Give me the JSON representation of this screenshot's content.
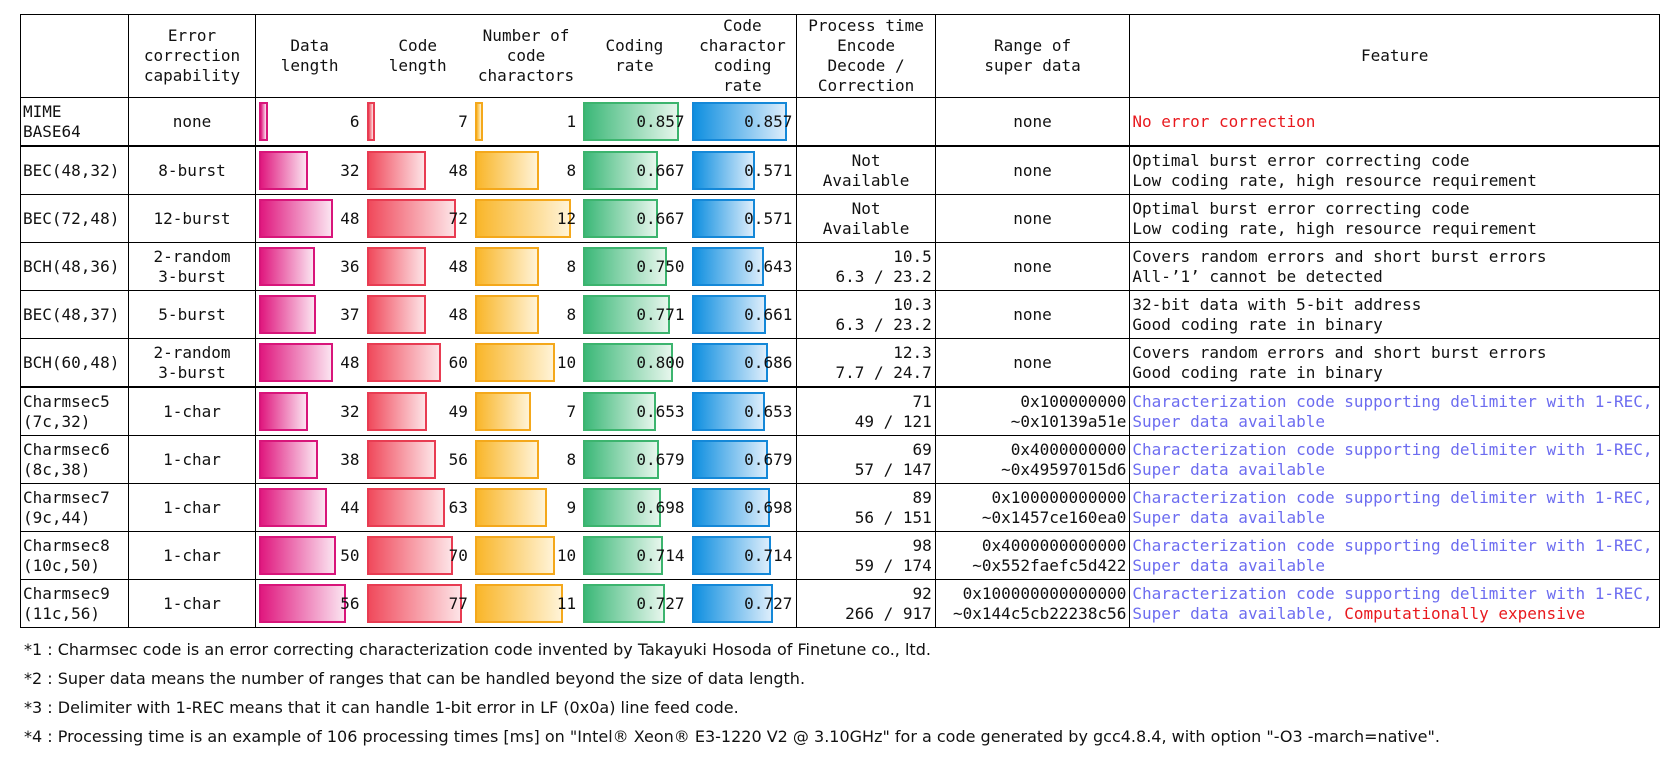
{
  "headers": {
    "blank": "",
    "ecc": "Error\ncorrection\ncapability",
    "data_length": "Data length",
    "code_length": "Code length",
    "num_chars": "Number of\ncode\ncharactors",
    "coding_rate": "Coding rate",
    "char_rate": "Code\ncharactor\ncoding rate",
    "process_time": "Process time\nEncode\nDecode /\nCorrection",
    "range": "Range of\nsuper data",
    "feature": "Feature"
  },
  "rows": [
    {
      "name": "MIME BASE64",
      "ecc": "none",
      "data_length": 6,
      "code_length": 7,
      "num_chars": 1,
      "coding_rate": 0.857,
      "char_rate": 0.857,
      "coding_rate_text": "0.857",
      "char_rate_text": "0.857",
      "process": "",
      "range": "none",
      "feature": [
        {
          "text": "No error correction",
          "color": "red"
        }
      ]
    },
    {
      "name": "BEC(48,32)",
      "ecc": "8-burst",
      "data_length": 32,
      "code_length": 48,
      "num_chars": 8,
      "coding_rate": 0.667,
      "char_rate": 0.571,
      "coding_rate_text": "0.667",
      "char_rate_text": "0.571",
      "process": "Not\nAvailable",
      "process_align": "center",
      "range": "none",
      "feature": [
        {
          "text": "Optimal burst error correcting code\nLow coding rate, high resource requirement",
          "color": "black"
        }
      ]
    },
    {
      "name": "BEC(72,48)",
      "ecc": "12-burst",
      "data_length": 48,
      "code_length": 72,
      "num_chars": 12,
      "coding_rate": 0.667,
      "char_rate": 0.571,
      "coding_rate_text": "0.667",
      "char_rate_text": "0.571",
      "process": "Not\nAvailable",
      "process_align": "center",
      "range": "none",
      "feature": [
        {
          "text": "Optimal burst error correcting code\nLow coding rate, high resource requirement",
          "color": "black"
        }
      ]
    },
    {
      "name": "BCH(48,36)",
      "ecc": "2-random\n3-burst",
      "data_length": 36,
      "code_length": 48,
      "num_chars": 8,
      "coding_rate": 0.75,
      "char_rate": 0.643,
      "coding_rate_text": "0.750",
      "char_rate_text": "0.643",
      "process": "10.5\n6.3 / 23.2",
      "range": "none",
      "feature": [
        {
          "text": "Covers random errors and short burst errors\nAll-’1’ cannot be detected",
          "color": "black"
        }
      ]
    },
    {
      "name": "BEC(48,37)",
      "ecc": "5-burst",
      "data_length": 37,
      "code_length": 48,
      "num_chars": 8,
      "coding_rate": 0.771,
      "char_rate": 0.661,
      "coding_rate_text": "0.771",
      "char_rate_text": "0.661",
      "process": "10.3\n6.3 / 23.2",
      "range": "none",
      "feature": [
        {
          "text": "32-bit data with 5-bit address\nGood coding rate in binary",
          "color": "black"
        }
      ]
    },
    {
      "name": "BCH(60,48)",
      "ecc": "2-random\n3-burst",
      "data_length": 48,
      "code_length": 60,
      "num_chars": 10,
      "coding_rate": 0.8,
      "char_rate": 0.686,
      "coding_rate_text": "0.800",
      "char_rate_text": "0.686",
      "process": "12.3\n7.7 / 24.7",
      "range": "none",
      "feature": [
        {
          "text": "Covers random errors and short burst errors\nGood coding rate in binary",
          "color": "black"
        }
      ]
    },
    {
      "name": "Charmsec5\n (7c,32)",
      "ecc": "1-char",
      "data_length": 32,
      "code_length": 49,
      "num_chars": 7,
      "coding_rate": 0.653,
      "char_rate": 0.653,
      "coding_rate_text": "0.653",
      "char_rate_text": "0.653",
      "process": "71\n49 / 121",
      "range": "0x100000000\n~0x10139a51e",
      "range_align": "right",
      "feature": [
        {
          "text": "Characterization code supporting delimiter with 1-REC,\nSuper data available",
          "color": "blue"
        }
      ]
    },
    {
      "name": "Charmsec6\n (8c,38)",
      "ecc": "1-char",
      "data_length": 38,
      "code_length": 56,
      "num_chars": 8,
      "coding_rate": 0.679,
      "char_rate": 0.679,
      "coding_rate_text": "0.679",
      "char_rate_text": "0.679",
      "process": "69\n57 / 147",
      "range": "0x4000000000\n~0x49597015d6",
      "range_align": "right",
      "feature": [
        {
          "text": "Characterization code supporting delimiter with 1-REC,\nSuper data available",
          "color": "blue"
        }
      ]
    },
    {
      "name": "Charmsec7\n (9c,44)",
      "ecc": "1-char",
      "data_length": 44,
      "code_length": 63,
      "num_chars": 9,
      "coding_rate": 0.698,
      "char_rate": 0.698,
      "coding_rate_text": "0.698",
      "char_rate_text": "0.698",
      "process": "89\n56 / 151",
      "range": "0x100000000000\n~0x1457ce160ea0",
      "range_align": "right",
      "feature": [
        {
          "text": "Characterization code supporting delimiter with 1-REC,\nSuper data available",
          "color": "blue"
        }
      ]
    },
    {
      "name": "Charmsec8\n (10c,50)",
      "ecc": "1-char",
      "data_length": 50,
      "code_length": 70,
      "num_chars": 10,
      "coding_rate": 0.714,
      "char_rate": 0.714,
      "coding_rate_text": "0.714",
      "char_rate_text": "0.714",
      "process": "98\n59 / 174",
      "range": "0x4000000000000\n~0x552faefc5d422",
      "range_align": "right",
      "feature": [
        {
          "text": "Characterization code supporting delimiter with 1-REC,\nSuper data available",
          "color": "blue"
        }
      ]
    },
    {
      "name": "Charmsec9\n (11c,56)",
      "ecc": "1-char",
      "data_length": 56,
      "code_length": 77,
      "num_chars": 11,
      "coding_rate": 0.727,
      "char_rate": 0.727,
      "coding_rate_text": "0.727",
      "char_rate_text": "0.727",
      "process": "92\n266 / 917",
      "range": "0x100000000000000\n~0x144c5cb22238c56",
      "range_align": "right",
      "feature": [
        {
          "text": "Characterization code supporting delimiter with 1-REC,\nSuper data available, ",
          "color": "blue"
        },
        {
          "text": "Computationally expensive",
          "color": "red"
        }
      ]
    }
  ],
  "bar_max": {
    "data_length": 56,
    "code_length": 77,
    "num_chars": 12,
    "coding_rate": 0.857,
    "char_rate": 0.857
  },
  "colors": {
    "data_length": "#e0197f",
    "code_length": "#f04a5c",
    "num_chars": "#f9b62a",
    "coding_rate": "#3cb878",
    "char_rate": "#0f8fe0",
    "red_text": "#e8191e",
    "blue_text": "#6c6cf0"
  },
  "notes": [
    "*1 : Charmsec code is an error correcting characterization code invented by Takayuki Hosoda of Finetune co., ltd.",
    "*2 : Super data means the number of ranges that can be handled beyond the size of data length.",
    "*3 : Delimiter with 1-REC means that it can handle 1-bit error in LF (0x0a) line feed code.",
    "*4 : Processing time is an example of 106 processing times [ms] on \"Intel® Xeon® E3-1220 V2 @ 3.10GHz\" for a code generated by gcc4.8.4, with option \"-O3 -march=native\"."
  ]
}
